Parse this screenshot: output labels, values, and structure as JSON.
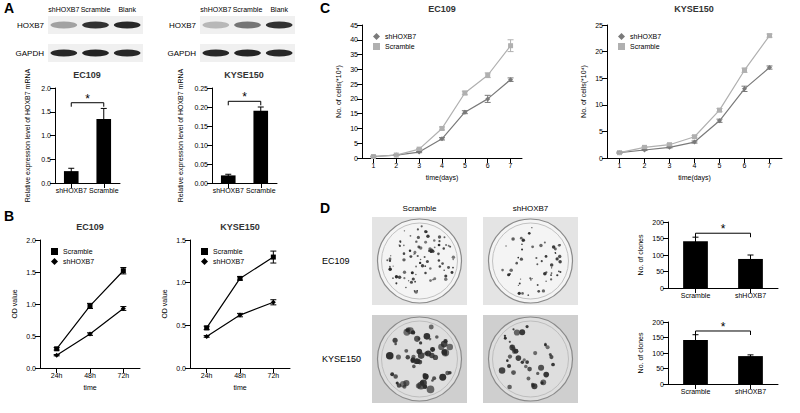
{
  "panel_labels": [
    "A",
    "B",
    "C",
    "D"
  ],
  "western_blots": [
    {
      "lanes": [
        "shHOXB7",
        "Scramble",
        "Blank"
      ],
      "rows": [
        "HOXB7",
        "GAPDH"
      ]
    },
    {
      "lanes": [
        "shHOXB7",
        "Scramble",
        "Blank"
      ],
      "rows": [
        "HOXB7",
        "GAPDH"
      ]
    }
  ],
  "colony_images": {
    "columns": [
      "Scramble",
      "shHOXB7"
    ],
    "rows": [
      "EC109",
      "KYSE150"
    ]
  },
  "chart_data": [
    {
      "type": "bar",
      "title": "EC109",
      "categories": [
        "shHOXB7",
        "Scramble"
      ],
      "values": [
        0.25,
        1.35
      ],
      "errors": [
        0.06,
        0.22
      ],
      "color": "#000000",
      "ylabel": "Relative expression level of HOXB7 mRNA",
      "ylim": [
        0,
        2
      ],
      "yticks": [
        {
          "value": 0,
          "label": "0.0"
        },
        0.5,
        {
          "value": 1,
          "label": "1.0"
        },
        1.5,
        {
          "value": 2,
          "label": "2.0"
        }
      ],
      "grid": false,
      "annotation": "*"
    },
    {
      "type": "bar",
      "title": "KYSE150",
      "categories": [
        "shHOXB7",
        "Scramble"
      ],
      "values": [
        0.02,
        0.19
      ],
      "errors": [
        0.003,
        0.01
      ],
      "color": "#000000",
      "ylabel": "Relative expression level of HOXB7 mRNA",
      "ylim": [
        0,
        0.25
      ],
      "yticks": [
        {
          "value": 0,
          "label": "0.00"
        },
        0.05,
        {
          "value": 0.1,
          "label": "0.10"
        },
        0.15,
        {
          "value": 0.2,
          "label": "0.20"
        },
        0.25
      ],
      "grid": false,
      "annotation": "*"
    },
    {
      "type": "line",
      "title": "EC109",
      "categories": [
        "24h",
        "48h",
        "72h"
      ],
      "xlabel": "time",
      "ylabel": "OD value",
      "series": [
        {
          "name": "Scramble",
          "color": "#000000",
          "marker": "square",
          "values": [
            0.3,
            0.97,
            1.52
          ],
          "errors": [
            0.02,
            0.04,
            0.05
          ]
        },
        {
          "name": "shHOXB7",
          "color": "#000000",
          "marker": "diamond",
          "values": [
            0.2,
            0.53,
            0.93
          ],
          "errors": [
            0.01,
            0.02,
            0.03
          ]
        }
      ],
      "ylim": [
        0,
        2
      ],
      "yticks": [
        {
          "value": 0,
          "label": "0.0"
        },
        0.5,
        {
          "value": 1,
          "label": "1.0"
        },
        1.5,
        {
          "value": 2,
          "label": "2.0"
        }
      ],
      "grid": false,
      "legend": "top-left"
    },
    {
      "type": "line",
      "title": "KYSE150",
      "categories": [
        "24h",
        "48h",
        "72h"
      ],
      "xlabel": "time",
      "ylabel": "OD value",
      "series": [
        {
          "name": "Scramble",
          "color": "#000000",
          "marker": "square",
          "values": [
            0.47,
            1.05,
            1.3
          ],
          "errors": [
            0.02,
            0.02,
            0.07
          ]
        },
        {
          "name": "shHOXB7",
          "color": "#000000",
          "marker": "diamond",
          "values": [
            0.37,
            0.62,
            0.77
          ],
          "errors": [
            0.01,
            0.02,
            0.03
          ]
        }
      ],
      "ylim": [
        0,
        1.5
      ],
      "yticks": [
        {
          "value": 0,
          "label": "0.0"
        },
        0.5,
        {
          "value": 1,
          "label": "1.0"
        },
        1.5
      ],
      "grid": false,
      "legend": "top-left"
    },
    {
      "type": "line",
      "title": "EC109",
      "categories": [
        "1",
        "2",
        "3",
        "4",
        "5",
        "6",
        "7"
      ],
      "xlabel": "time(days)",
      "ylabel": "No. of cells(*10⁴)",
      "series": [
        {
          "name": "shHOXB7",
          "color": "#7a7a7a",
          "marker": "diamond",
          "values": [
            0.5,
            1,
            2,
            6.5,
            15.5,
            20,
            26.5
          ],
          "errors": [
            0.1,
            0.1,
            0.2,
            0.4,
            0.5,
            1.2,
            0.6
          ]
        },
        {
          "name": "Scramble",
          "color": "#b0b0b0",
          "marker": "square",
          "values": [
            0.5,
            1,
            3,
            10,
            22,
            28,
            38
          ],
          "errors": [
            0.1,
            0.1,
            0.2,
            0.5,
            0.6,
            0.8,
            2
          ]
        }
      ],
      "ylim": [
        0,
        45
      ],
      "yticks": [
        0,
        5,
        10,
        15,
        20,
        25,
        30,
        35,
        40,
        45
      ],
      "grid": false,
      "legend": "top-left"
    },
    {
      "type": "line",
      "title": "KYSE150",
      "categories": [
        "1",
        "2",
        "3",
        "4",
        "5",
        "6",
        "7"
      ],
      "xlabel": "time(days)",
      "ylabel": "No. of cells(*10⁴)",
      "series": [
        {
          "name": "shHOXB7",
          "color": "#7a7a7a",
          "marker": "diamond",
          "values": [
            1,
            1.5,
            2,
            3,
            7,
            13,
            17
          ],
          "errors": [
            0.1,
            0.1,
            0.1,
            0.2,
            0.3,
            0.5,
            0.3
          ]
        },
        {
          "name": "Scramble",
          "color": "#b0b0b0",
          "marker": "square",
          "values": [
            1,
            2,
            2.5,
            4,
            9,
            16.5,
            23
          ],
          "errors": [
            0.1,
            0.1,
            0.2,
            0.2,
            0.3,
            0.4,
            0.3
          ]
        }
      ],
      "ylim": [
        0,
        25
      ],
      "yticks": [
        0,
        5,
        10,
        15,
        20,
        25
      ],
      "grid": false,
      "legend": "top-left"
    },
    {
      "type": "bar",
      "categories": [
        "Scramble",
        "shHOXB7"
      ],
      "values": [
        142,
        88
      ],
      "errors": [
        12,
        12
      ],
      "color": "#000000",
      "ylabel": "No. of clones",
      "ylim": [
        0,
        200
      ],
      "yticks": [
        0,
        50,
        100,
        150,
        200
      ],
      "grid": false,
      "annotation": "*"
    },
    {
      "type": "bar",
      "categories": [
        "Scramble",
        "shHOXB7"
      ],
      "values": [
        142,
        90
      ],
      "errors": [
        17,
        4
      ],
      "color": "#000000",
      "ylabel": "No. of clones",
      "ylim": [
        0,
        200
      ],
      "yticks": [
        0,
        50,
        100,
        150,
        200
      ],
      "grid": false,
      "annotation": "*"
    }
  ]
}
